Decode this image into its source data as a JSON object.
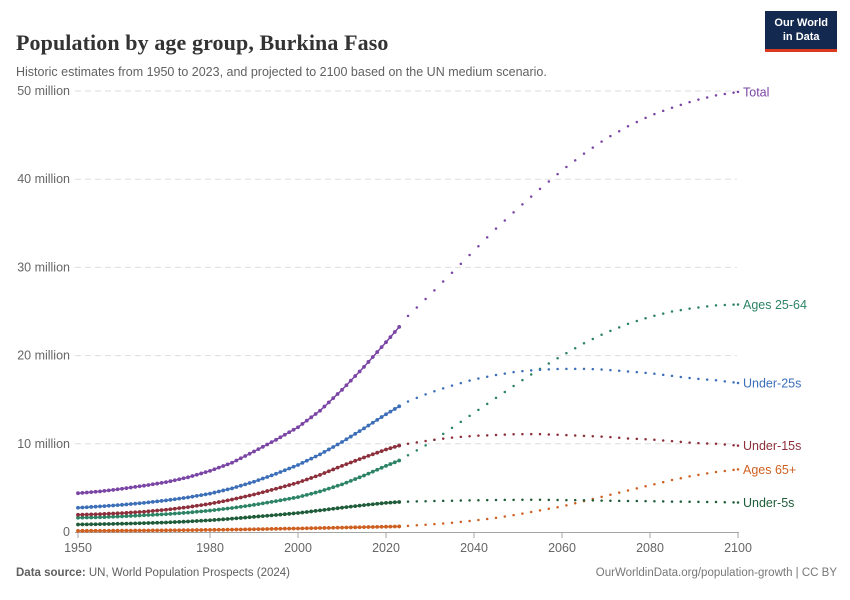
{
  "header": {
    "title": "Population by age group, Burkina Faso",
    "subtitle": "Historic estimates from 1950 to 2023, and projected to 2100 based on the UN medium scenario."
  },
  "logo": {
    "line1": "Our World",
    "line2": "in Data",
    "bg_color": "#13294f",
    "accent_color": "#d8391f"
  },
  "footer": {
    "source_label": "Data source:",
    "source_text": " UN, World Population Prospects (2024)",
    "credit": "OurWorldinData.org/population-growth | CC BY"
  },
  "chart_data": {
    "type": "line",
    "title": "Population by age group, Burkina Faso",
    "subtitle": "Historic estimates from 1950 to 2023, and projected to 2100 based on the UN medium scenario.",
    "xlabel": "",
    "ylabel": "",
    "y_unit": "million",
    "xlim": [
      1950,
      2100
    ],
    "ylim": [
      0,
      50
    ],
    "grid": true,
    "legend_position": "right-end-labels",
    "historic_end_year": 2023,
    "projection_style": "dotted",
    "x_ticks": [
      1950,
      1980,
      2000,
      2020,
      2040,
      2060,
      2080,
      2100
    ],
    "y_ticks": [
      0,
      10,
      20,
      30,
      40,
      50
    ],
    "y_tick_labels": [
      "0",
      "10 million",
      "20 million",
      "30 million",
      "40 million",
      "50 million"
    ],
    "axis_color": "#a5a5a5",
    "grid_color": "#dddddd",
    "tick_label_color": "#666666",
    "years": [
      1950,
      1955,
      1960,
      1965,
      1970,
      1975,
      1980,
      1985,
      1990,
      1995,
      2000,
      2005,
      2010,
      2015,
      2020,
      2023,
      2025,
      2030,
      2035,
      2040,
      2045,
      2050,
      2055,
      2060,
      2065,
      2070,
      2075,
      2080,
      2085,
      2090,
      2095,
      2100
    ],
    "series": [
      {
        "name": "total",
        "label": "Total",
        "color": "#7a45a5",
        "values": [
          4.4,
          4.6,
          4.9,
          5.25,
          5.65,
          6.2,
          6.93,
          7.85,
          9.13,
          10.45,
          11.88,
          13.75,
          16.12,
          18.72,
          21.52,
          23.25,
          24.5,
          26.9,
          29.4,
          31.9,
          34.4,
          36.7,
          38.9,
          41.0,
          42.9,
          44.6,
          46.0,
          47.2,
          48.1,
          48.9,
          49.5,
          49.9
        ]
      },
      {
        "name": "ages-25-64",
        "label": "Ages 25-64",
        "color": "#2c8465",
        "values": [
          1.62,
          1.67,
          1.77,
          1.9,
          2.02,
          2.2,
          2.43,
          2.72,
          3.08,
          3.5,
          3.95,
          4.6,
          5.4,
          6.4,
          7.5,
          8.1,
          8.7,
          10.1,
          11.8,
          13.5,
          15.2,
          16.9,
          18.5,
          20.0,
          21.4,
          22.6,
          23.6,
          24.4,
          25.0,
          25.4,
          25.7,
          25.8
        ]
      },
      {
        "name": "under-25s",
        "label": "Under-25s",
        "color": "#3c6fb8",
        "values": [
          2.75,
          2.9,
          3.08,
          3.3,
          3.58,
          3.92,
          4.35,
          4.95,
          5.7,
          6.6,
          7.6,
          8.8,
          10.2,
          11.75,
          13.35,
          14.25,
          14.8,
          15.8,
          16.6,
          17.3,
          17.8,
          18.2,
          18.4,
          18.5,
          18.5,
          18.4,
          18.2,
          18.0,
          17.7,
          17.4,
          17.2,
          16.9
        ]
      },
      {
        "name": "under-15s",
        "label": "Under-15s",
        "color": "#8c2f3b",
        "values": [
          1.95,
          2.03,
          2.14,
          2.3,
          2.52,
          2.82,
          3.2,
          3.68,
          4.25,
          4.9,
          5.6,
          6.48,
          7.5,
          8.45,
          9.35,
          9.8,
          10.0,
          10.4,
          10.7,
          10.9,
          11.0,
          11.1,
          11.1,
          11.0,
          10.9,
          10.8,
          10.6,
          10.5,
          10.3,
          10.1,
          10.0,
          9.8
        ]
      },
      {
        "name": "ages-65plus",
        "label": "Ages 65+",
        "color": "#ce6122",
        "values": [
          0.13,
          0.14,
          0.15,
          0.17,
          0.19,
          0.21,
          0.24,
          0.27,
          0.31,
          0.36,
          0.4,
          0.45,
          0.5,
          0.55,
          0.6,
          0.63,
          0.7,
          0.85,
          1.05,
          1.3,
          1.6,
          2.0,
          2.45,
          2.9,
          3.5,
          4.1,
          4.7,
          5.3,
          5.9,
          6.4,
          6.8,
          7.1
        ]
      },
      {
        "name": "under-5s",
        "label": "Under-5s",
        "color": "#1f5c39",
        "values": [
          0.85,
          0.89,
          0.94,
          1.0,
          1.08,
          1.19,
          1.33,
          1.51,
          1.72,
          1.93,
          2.15,
          2.45,
          2.76,
          3.05,
          3.3,
          3.4,
          3.45,
          3.5,
          3.55,
          3.6,
          3.63,
          3.65,
          3.65,
          3.62,
          3.6,
          3.55,
          3.52,
          3.5,
          3.45,
          3.42,
          3.4,
          3.35
        ]
      }
    ]
  }
}
